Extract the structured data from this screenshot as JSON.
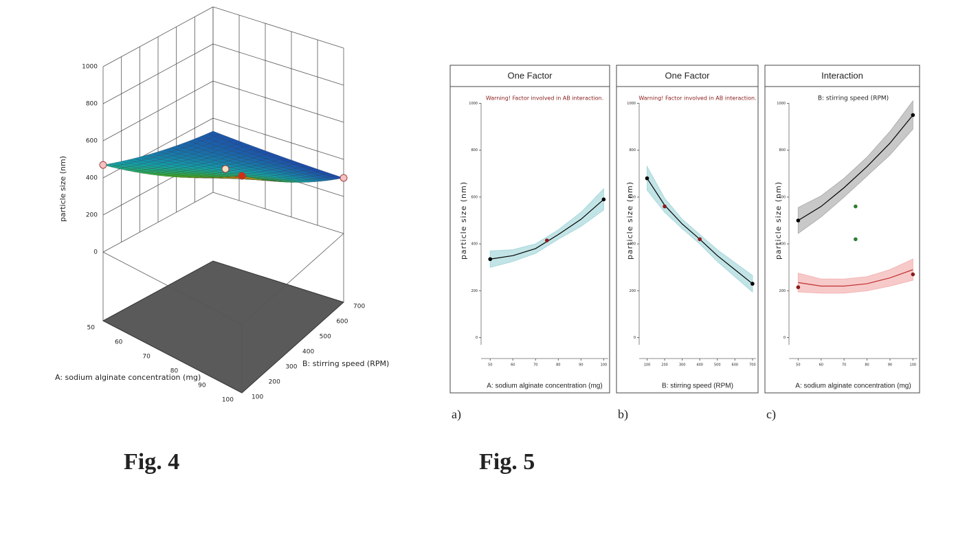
{
  "figures": [
    "Fig. 4",
    "Fig. 5"
  ],
  "chart_data": [
    {
      "type": "surface",
      "zlabel": "particle size (nm)",
      "xlabel": "A: sodium alginate concentration (mg)",
      "ylabel": "B: stirring speed (RPM)",
      "x": [
        50,
        75,
        100
      ],
      "y": [
        100,
        400,
        700
      ],
      "z": [
        [
          470,
          380,
          330
        ],
        [
          600,
          440,
          310
        ],
        [
          800,
          520,
          300
        ]
      ],
      "xlim": [
        50,
        100
      ],
      "ylim": [
        100,
        700
      ],
      "zlim": [
        0,
        1000
      ],
      "xticks": [
        50,
        60,
        70,
        80,
        90,
        100
      ],
      "yticks": [
        100,
        200,
        300,
        400,
        500,
        600,
        700
      ],
      "zticks": [
        0,
        200,
        400,
        600,
        800,
        1000
      ],
      "design_points": {
        "x": [
          50,
          75,
          100,
          100
        ],
        "y": [
          100,
          400,
          100,
          700
        ],
        "z": [
          470,
          440,
          800,
          300
        ],
        "colors": [
          "#f4c2c2",
          "#f4e0c0",
          "#d03010",
          "#f4c2c2"
        ]
      }
    },
    {
      "type": "line",
      "panel": "a)",
      "title": "One Factor",
      "annotation": "Warning! Factor involved in AB interaction.",
      "xlabel": "A: sodium alginate concentration (mg)",
      "ylabel": "particle size (nm)",
      "x": [
        50,
        60,
        70,
        80,
        90,
        100
      ],
      "xlim": [
        46,
        102
      ],
      "xticks": [
        50,
        60,
        70,
        80,
        90,
        100
      ],
      "ylim": [
        -60,
        1060
      ],
      "yticks": [
        0,
        200,
        400,
        600,
        800,
        1000
      ],
      "series": [
        {
          "color": "#000000",
          "band_color": "#a8d8dc",
          "values": [
            335,
            350,
            380,
            440,
            505,
            590
          ],
          "lower": [
            300,
            325,
            360,
            420,
            475,
            545
          ],
          "upper": [
            370,
            375,
            400,
            460,
            535,
            635
          ],
          "points_x": [
            50,
            75,
            100
          ],
          "points": [
            335,
            415,
            590
          ],
          "point_colors": [
            "#000000",
            "#8b1a1a",
            "#000000"
          ]
        }
      ]
    },
    {
      "type": "line",
      "panel": "b)",
      "title": "One Factor",
      "annotation": "Warning! Factor involved in AB interaction.",
      "xlabel": "B: stirring speed (RPM)",
      "ylabel": "particle size (nm)",
      "x": [
        100,
        200,
        300,
        400,
        500,
        600,
        700
      ],
      "xlim": [
        55,
        720
      ],
      "xticks": [
        100,
        200,
        300,
        400,
        500,
        600,
        700
      ],
      "ylim": [
        -60,
        1060
      ],
      "yticks": [
        0,
        200,
        400,
        600,
        800,
        1000
      ],
      "series": [
        {
          "color": "#000000",
          "band_color": "#a8d8dc",
          "values": [
            680,
            565,
            485,
            420,
            350,
            290,
            230
          ],
          "lower": [
            630,
            535,
            465,
            400,
            325,
            260,
            195
          ],
          "upper": [
            730,
            595,
            505,
            440,
            375,
            320,
            265
          ],
          "points_x": [
            100,
            200,
            400,
            700
          ],
          "points": [
            680,
            560,
            420,
            230
          ],
          "point_colors": [
            "#000000",
            "#8b1a1a",
            "#8b1a1a",
            "#000000"
          ]
        }
      ]
    },
    {
      "type": "line",
      "panel": "c)",
      "title": "Interaction",
      "legend_title": "B: stirring speed (RPM)",
      "xlabel": "A: sodium alginate concentration (mg)",
      "ylabel": "particle size (nm)",
      "x": [
        50,
        60,
        70,
        80,
        90,
        100
      ],
      "xlim": [
        46,
        102
      ],
      "xticks": [
        50,
        60,
        70,
        80,
        90,
        100
      ],
      "ylim": [
        -60,
        1060
      ],
      "yticks": [
        0,
        200,
        400,
        600,
        800,
        1000
      ],
      "series": [
        {
          "color": "#000000",
          "band_color": "#b0b0b0",
          "values": [
            500,
            560,
            640,
            730,
            830,
            950
          ],
          "lower": [
            445,
            515,
            600,
            690,
            780,
            890
          ],
          "upper": [
            555,
            605,
            680,
            770,
            880,
            1010
          ],
          "points_x": [
            50,
            100
          ],
          "points": [
            500,
            950
          ],
          "point_colors": [
            "#000000",
            "#000000"
          ]
        },
        {
          "color": "#c03030",
          "band_color": "#f4b4b4",
          "values": [
            235,
            220,
            220,
            230,
            255,
            290
          ],
          "lower": [
            195,
            190,
            190,
            200,
            220,
            245
          ],
          "upper": [
            275,
            250,
            250,
            260,
            290,
            335
          ],
          "points_x": [
            50,
            100
          ],
          "points": [
            215,
            270
          ],
          "point_colors": [
            "#8b1a1a",
            "#8b1a1a"
          ]
        },
        {
          "color": "#2e7d32",
          "points_x": [
            75,
            75
          ],
          "points": [
            560,
            420
          ],
          "point_colors": [
            "#2e7d32",
            "#2e7d32"
          ]
        }
      ]
    }
  ]
}
